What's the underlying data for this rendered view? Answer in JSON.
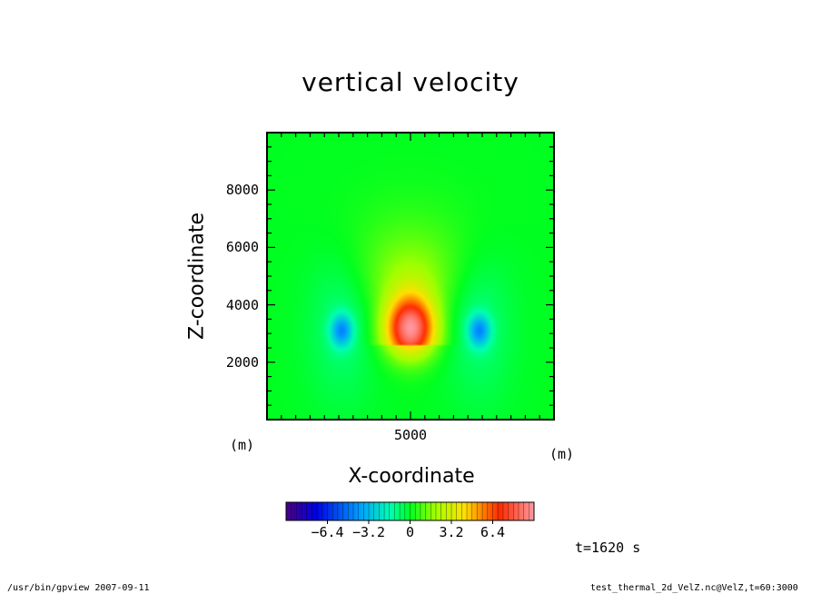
{
  "chart_data": {
    "type": "heatmap",
    "title": "vertical velocity",
    "xlabel": "X-coordinate",
    "ylabel": "Z-coordinate",
    "x_unit": "(m)",
    "y_unit": "(m)",
    "xlim": [
      0,
      10000
    ],
    "ylim": [
      0,
      10000
    ],
    "x_ticks": [
      5000
    ],
    "y_ticks": [
      2000,
      4000,
      6000,
      8000
    ],
    "colorbar": {
      "range": [
        -9.6,
        9.6
      ],
      "tick_values": [
        -6.4,
        -3.2,
        0,
        3.2,
        6.4
      ],
      "tick_labels": [
        "−6.4",
        "−3.2",
        "0",
        "3.2",
        "6.4"
      ]
    },
    "features": [
      {
        "label": "updraft core",
        "x": 5000,
        "z": 3200,
        "value": 9.0
      },
      {
        "label": "downdraft left",
        "x": 2600,
        "z": 3100,
        "value": -3.5
      },
      {
        "label": "downdraft right",
        "x": 7400,
        "z": 3100,
        "value": -3.5
      }
    ],
    "time_label": "t=1620 s"
  },
  "footer": {
    "left": "/usr/bin/gpview   2007-09-11",
    "right": "test_thermal_2d_VelZ.nc@VelZ,t=60:3000"
  }
}
